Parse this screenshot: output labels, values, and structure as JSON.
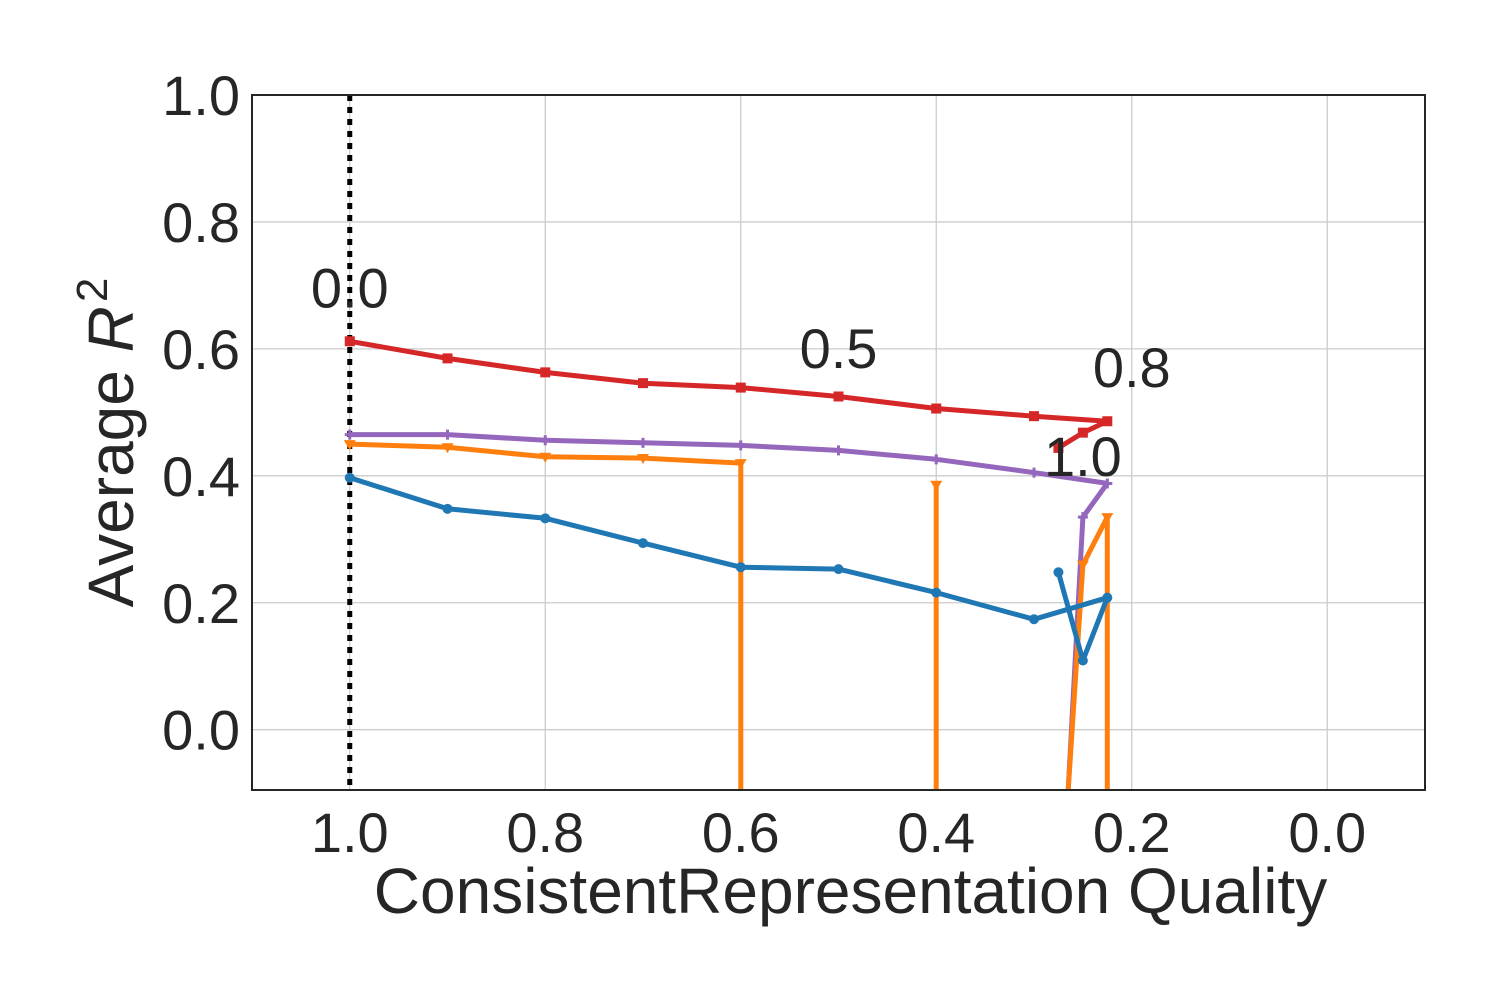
{
  "chart_data": {
    "type": "line",
    "title": "",
    "xlabel": "ConsistentRepresentation Quality",
    "ylabel_main": "Average ",
    "ylabel_var": "R",
    "ylabel_sup": "2",
    "xlim": [
      1.1,
      -0.1
    ],
    "ylim": [
      -0.095,
      1.0
    ],
    "x_inverted": true,
    "grid": true,
    "legend": "none",
    "x_ticks": [
      1.0,
      0.8,
      0.6,
      0.4,
      0.2,
      0.0
    ],
    "x_tick_labels": [
      "1.0",
      "0.8",
      "0.6",
      "0.4",
      "0.2",
      "0.0"
    ],
    "y_ticks": [
      0.0,
      0.2,
      0.4,
      0.6,
      0.8,
      1.0
    ],
    "y_tick_labels": [
      "0.0",
      "0.2",
      "0.4",
      "0.6",
      "0.8",
      "1.0"
    ],
    "reference_line": {
      "x": 1.0,
      "style": "dotted",
      "color": "#000000"
    },
    "series": [
      {
        "color": "#d62728",
        "marker": "square",
        "x": [
          1.0,
          0.9,
          0.8,
          0.7,
          0.6,
          0.5,
          0.4,
          0.3,
          0.225,
          0.25,
          0.275
        ],
        "y": [
          0.612,
          0.585,
          0.563,
          0.546,
          0.539,
          0.525,
          0.506,
          0.494,
          0.486,
          0.468,
          0.444
        ]
      },
      {
        "color": "#9467bd",
        "marker": "plus",
        "x": [
          1.0,
          0.9,
          0.8,
          0.7,
          0.6,
          0.5,
          0.4,
          0.3,
          0.225,
          0.25,
          0.265
        ],
        "y": [
          0.465,
          0.465,
          0.456,
          0.452,
          0.448,
          0.44,
          0.426,
          0.405,
          0.388,
          0.335,
          -0.095
        ]
      },
      {
        "color": "#ff7f0e",
        "marker": "triangle-down",
        "x": [
          1.0,
          0.9,
          0.8,
          0.7,
          0.6,
          0.6
        ],
        "y": [
          0.45,
          0.445,
          0.43,
          0.428,
          0.42,
          -0.095
        ]
      },
      {
        "color": "#ff7f0e",
        "marker": "triangle-down",
        "x": [
          0.4,
          0.4
        ],
        "y": [
          0.386,
          -0.095
        ]
      },
      {
        "color": "#ff7f0e",
        "marker": "triangle-down",
        "x": [
          0.265,
          0.25,
          0.225,
          0.225
        ],
        "y": [
          -0.095,
          0.26,
          0.335,
          -0.095
        ]
      },
      {
        "color": "#1f77b4",
        "marker": "circle",
        "x": [
          1.0,
          0.9,
          0.8,
          0.7,
          0.6,
          0.5,
          0.4,
          0.3,
          0.225,
          0.25,
          0.275
        ],
        "y": [
          0.397,
          0.348,
          0.333,
          0.294,
          0.256,
          0.253,
          0.216,
          0.174,
          0.208,
          0.109,
          0.248
        ]
      }
    ],
    "annotations": [
      {
        "text": "0.0",
        "x": 1.0,
        "y": 0.665
      },
      {
        "text": "0.5",
        "x": 0.5,
        "y": 0.57
      },
      {
        "text": "0.8",
        "x": 0.2,
        "y": 0.54
      },
      {
        "text": "1.0",
        "x": 0.25,
        "y": 0.4
      }
    ]
  }
}
